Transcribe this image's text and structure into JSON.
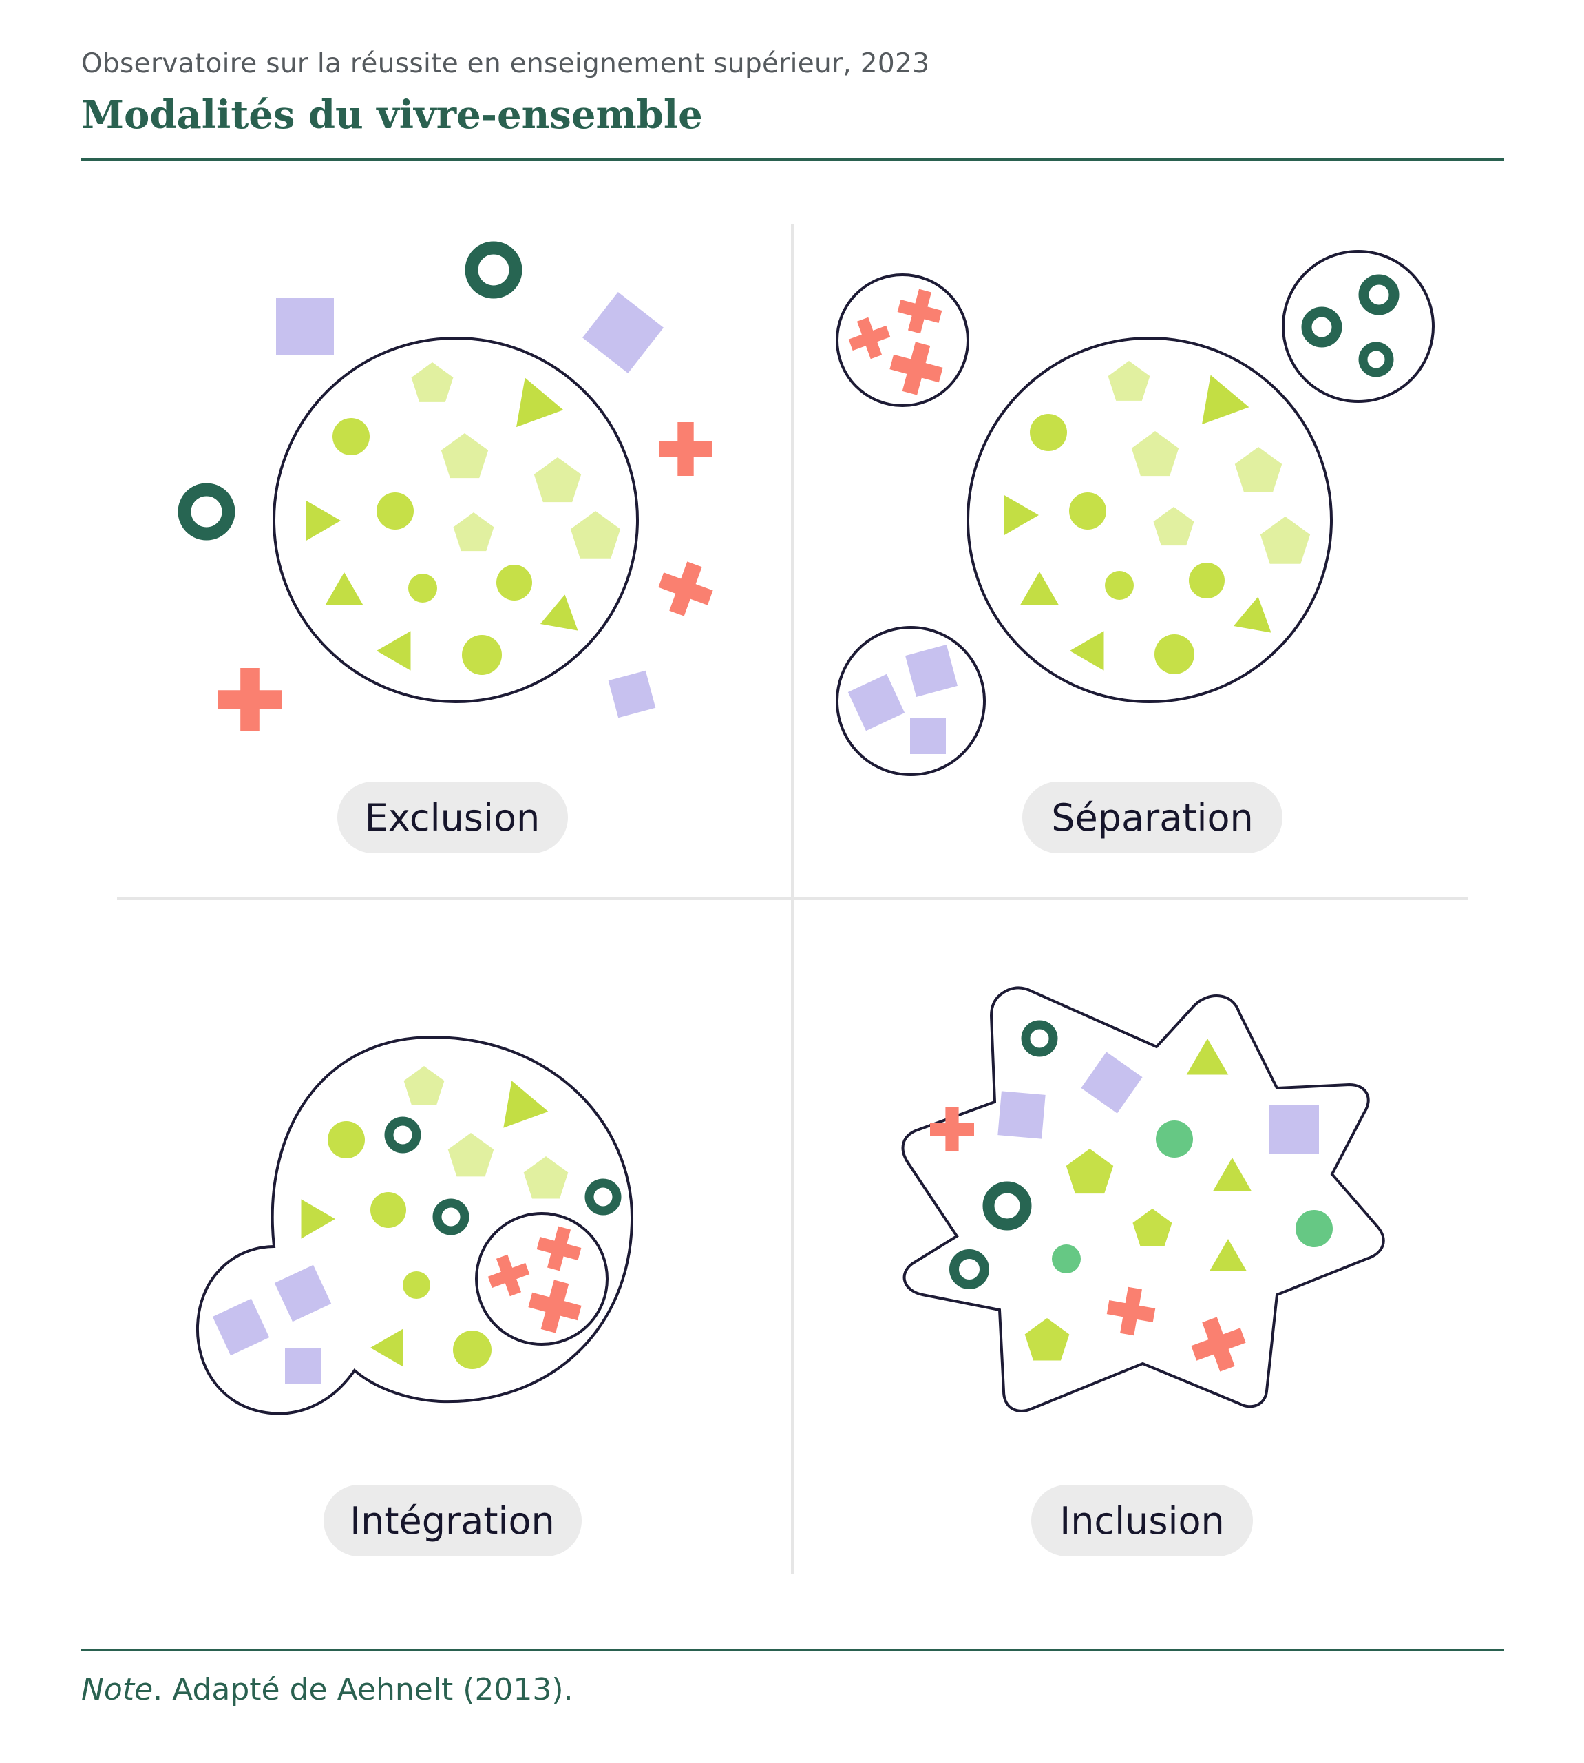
{
  "header": {
    "overtitle": "Observatoire sur la réussite en enseignement supérieur, 2023",
    "title": "Modalités du vivre-ensemble"
  },
  "panels": [
    {
      "id": "exclusion",
      "label": "Exclusion"
    },
    {
      "id": "separation",
      "label": "Séparation"
    },
    {
      "id": "integration",
      "label": "Intégration"
    },
    {
      "id": "inclusion",
      "label": "Inclusion"
    }
  ],
  "footer": {
    "note_label": "Note",
    "note_text": ". Adapté de Aehnelt (2013)."
  },
  "colors": {
    "accent": "#2a6150",
    "outline": "#1d1b35",
    "green_circle": "#c6e048",
    "green_pentagon": "#e1f0a0",
    "green_triangle": "#c3de44",
    "purple_square": "#c7c1ef",
    "red_cross": "#fa8070",
    "dark_ring": "#276552",
    "mint_circle": "#66c884",
    "pill_bg": "#ebebeb",
    "divider": "#e6e6e6"
  }
}
